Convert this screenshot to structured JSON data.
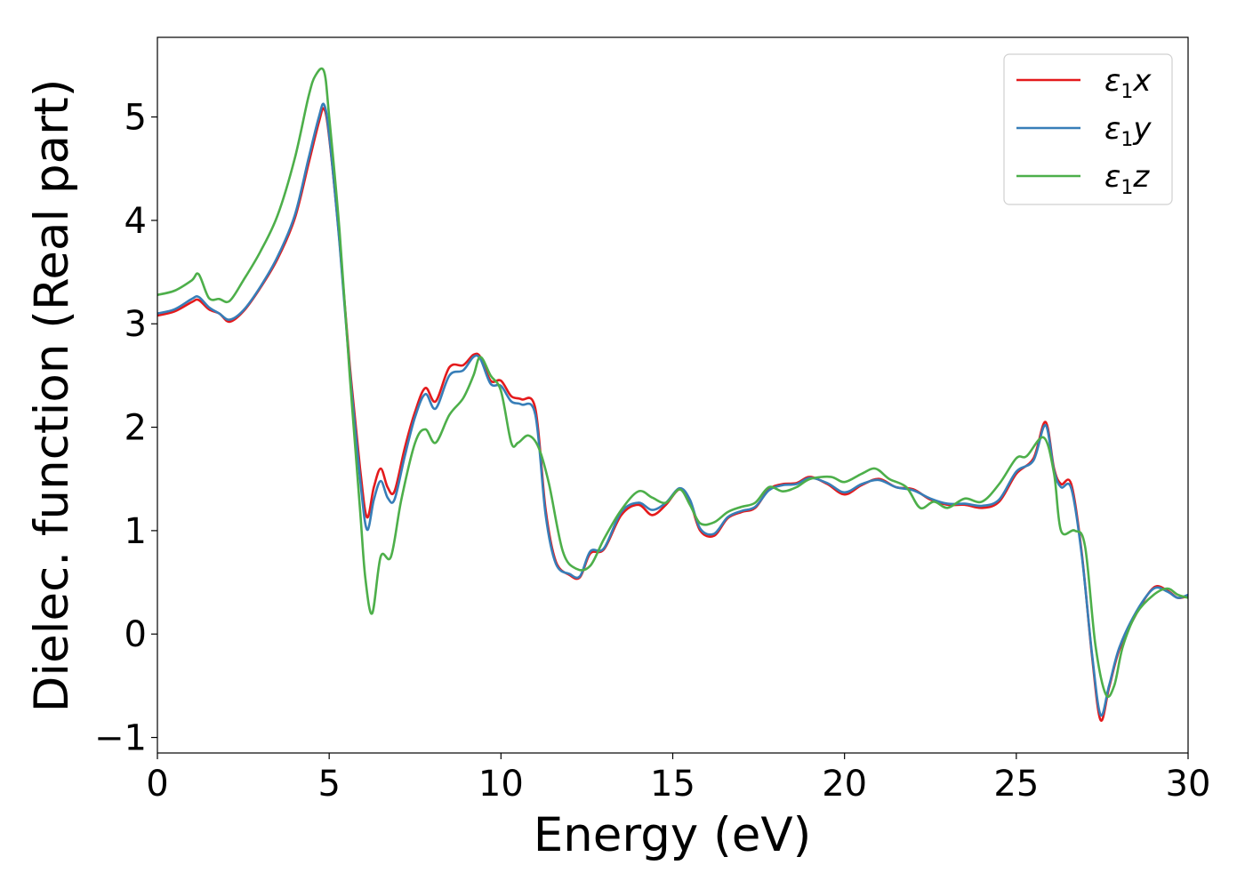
{
  "chart_data": {
    "type": "line",
    "title": "",
    "xlabel": "Energy (eV)",
    "ylabel": "Dielec. function (Real part)",
    "xlim": [
      0,
      30
    ],
    "ylim": [
      -1.15,
      5.77
    ],
    "xticks": [
      0,
      5,
      10,
      15,
      20,
      25,
      30
    ],
    "yticks": [
      -1,
      0,
      1,
      2,
      3,
      4,
      5
    ],
    "xtick_labels": [
      "0",
      "5",
      "10",
      "15",
      "20",
      "25",
      "30"
    ],
    "ytick_labels": [
      "−1",
      "0",
      "1",
      "2",
      "3",
      "4",
      "5"
    ],
    "grid": false,
    "legend_position": "upper right",
    "series": [
      {
        "name": "ε1x",
        "legend_base": "ε",
        "legend_sub": "1",
        "legend_suffix": "x",
        "color": "#e41a1c",
        "x": [
          0,
          0.5,
          1.0,
          1.2,
          1.5,
          1.8,
          2.1,
          2.5,
          3.0,
          3.5,
          4.0,
          4.4,
          4.7,
          4.85,
          5.0,
          5.3,
          5.6,
          5.9,
          6.1,
          6.3,
          6.5,
          6.7,
          6.9,
          7.2,
          7.5,
          7.8,
          8.1,
          8.5,
          8.9,
          9.2,
          9.4,
          9.7,
          10.0,
          10.3,
          10.6,
          11.0,
          11.3,
          11.6,
          12.0,
          12.3,
          12.6,
          13.0,
          13.5,
          14.0,
          14.4,
          14.8,
          15.2,
          15.5,
          15.8,
          16.2,
          16.6,
          17.0,
          17.4,
          17.8,
          18.2,
          18.6,
          19.0,
          19.5,
          20.0,
          20.5,
          21.0,
          21.5,
          22.0,
          22.5,
          23.0,
          23.5,
          24.0,
          24.5,
          25.0,
          25.5,
          25.85,
          26.1,
          26.3,
          26.6,
          26.9,
          27.2,
          27.45,
          27.7,
          28.0,
          28.5,
          29.0,
          29.4,
          29.7,
          30.0
        ],
        "y": [
          3.08,
          3.12,
          3.21,
          3.23,
          3.14,
          3.1,
          3.02,
          3.12,
          3.35,
          3.63,
          4.02,
          4.55,
          4.95,
          5.08,
          4.8,
          3.8,
          2.6,
          1.6,
          1.13,
          1.42,
          1.6,
          1.42,
          1.38,
          1.8,
          2.15,
          2.38,
          2.25,
          2.58,
          2.6,
          2.7,
          2.68,
          2.45,
          2.45,
          2.3,
          2.27,
          2.18,
          1.2,
          0.7,
          0.57,
          0.55,
          0.78,
          0.82,
          1.15,
          1.25,
          1.15,
          1.25,
          1.4,
          1.28,
          1.0,
          0.95,
          1.12,
          1.18,
          1.22,
          1.4,
          1.45,
          1.46,
          1.52,
          1.45,
          1.35,
          1.44,
          1.5,
          1.42,
          1.4,
          1.3,
          1.25,
          1.25,
          1.22,
          1.28,
          1.55,
          1.7,
          2.05,
          1.6,
          1.45,
          1.45,
          0.8,
          -0.2,
          -0.83,
          -0.52,
          -0.15,
          0.2,
          0.45,
          0.42,
          0.35,
          0.37
        ]
      },
      {
        "name": "ε1y",
        "legend_base": "ε",
        "legend_sub": "1",
        "legend_suffix": "y",
        "color": "#377eb8",
        "x": [
          0,
          0.5,
          1.0,
          1.2,
          1.5,
          1.8,
          2.1,
          2.5,
          3.0,
          3.5,
          4.0,
          4.4,
          4.7,
          4.85,
          5.0,
          5.3,
          5.6,
          5.9,
          6.1,
          6.3,
          6.5,
          6.7,
          6.9,
          7.2,
          7.5,
          7.8,
          8.1,
          8.5,
          8.9,
          9.2,
          9.4,
          9.7,
          10.0,
          10.3,
          10.6,
          11.0,
          11.3,
          11.6,
          12.0,
          12.3,
          12.6,
          13.0,
          13.5,
          14.0,
          14.4,
          14.8,
          15.2,
          15.5,
          15.8,
          16.2,
          16.6,
          17.0,
          17.4,
          17.8,
          18.2,
          18.6,
          19.0,
          19.5,
          20.0,
          20.5,
          21.0,
          21.5,
          22.0,
          22.5,
          23.0,
          23.5,
          24.0,
          24.5,
          25.0,
          25.5,
          25.85,
          26.1,
          26.3,
          26.6,
          26.9,
          27.2,
          27.45,
          27.7,
          28.0,
          28.5,
          29.0,
          29.4,
          29.7,
          30.0
        ],
        "y": [
          3.1,
          3.14,
          3.24,
          3.26,
          3.16,
          3.1,
          3.04,
          3.13,
          3.36,
          3.65,
          4.05,
          4.6,
          5.0,
          5.12,
          4.82,
          3.78,
          2.55,
          1.5,
          1.01,
          1.3,
          1.48,
          1.32,
          1.3,
          1.72,
          2.1,
          2.32,
          2.18,
          2.5,
          2.55,
          2.68,
          2.66,
          2.42,
          2.4,
          2.25,
          2.22,
          2.12,
          1.15,
          0.68,
          0.58,
          0.56,
          0.8,
          0.83,
          1.18,
          1.27,
          1.2,
          1.27,
          1.41,
          1.3,
          1.02,
          0.97,
          1.13,
          1.19,
          1.23,
          1.39,
          1.44,
          1.45,
          1.51,
          1.46,
          1.37,
          1.45,
          1.49,
          1.42,
          1.39,
          1.31,
          1.26,
          1.26,
          1.24,
          1.3,
          1.57,
          1.68,
          2.02,
          1.58,
          1.42,
          1.41,
          0.78,
          -0.18,
          -0.78,
          -0.5,
          -0.13,
          0.22,
          0.44,
          0.41,
          0.35,
          0.38
        ]
      },
      {
        "name": "ε1z",
        "legend_base": "ε",
        "legend_sub": "1",
        "legend_suffix": "z",
        "color": "#4daf4a",
        "x": [
          0,
          0.5,
          1.0,
          1.2,
          1.5,
          1.8,
          2.1,
          2.5,
          3.0,
          3.5,
          4.0,
          4.4,
          4.6,
          4.85,
          5.0,
          5.3,
          5.6,
          5.9,
          6.05,
          6.25,
          6.5,
          6.8,
          7.1,
          7.5,
          7.8,
          8.1,
          8.5,
          8.9,
          9.2,
          9.4,
          9.7,
          10.0,
          10.3,
          10.5,
          10.8,
          11.1,
          11.4,
          11.8,
          12.2,
          12.6,
          13.0,
          13.5,
          14.0,
          14.4,
          14.8,
          15.2,
          15.5,
          15.8,
          16.2,
          16.6,
          17.0,
          17.4,
          17.8,
          18.2,
          18.6,
          19.0,
          19.6,
          20.0,
          20.5,
          20.9,
          21.3,
          21.8,
          22.2,
          22.6,
          23.0,
          23.5,
          24.0,
          24.5,
          25.0,
          25.3,
          25.8,
          26.1,
          26.3,
          26.7,
          27.0,
          27.3,
          27.6,
          27.85,
          28.1,
          28.5,
          29.0,
          29.4,
          29.7,
          30.0
        ],
        "y": [
          3.28,
          3.32,
          3.42,
          3.48,
          3.25,
          3.24,
          3.22,
          3.42,
          3.7,
          4.05,
          4.6,
          5.2,
          5.4,
          5.44,
          5.0,
          3.9,
          2.5,
          1.2,
          0.55,
          0.2,
          0.75,
          0.75,
          1.3,
          1.85,
          1.98,
          1.85,
          2.12,
          2.28,
          2.5,
          2.68,
          2.5,
          2.35,
          1.85,
          1.85,
          1.92,
          1.8,
          1.45,
          0.8,
          0.63,
          0.66,
          0.92,
          1.2,
          1.38,
          1.32,
          1.27,
          1.4,
          1.25,
          1.07,
          1.08,
          1.18,
          1.23,
          1.27,
          1.42,
          1.38,
          1.42,
          1.5,
          1.52,
          1.47,
          1.55,
          1.6,
          1.5,
          1.42,
          1.22,
          1.28,
          1.22,
          1.31,
          1.28,
          1.45,
          1.7,
          1.72,
          1.9,
          1.55,
          1.0,
          1.0,
          0.85,
          -0.1,
          -0.58,
          -0.5,
          -0.12,
          0.2,
          0.38,
          0.44,
          0.38,
          0.35
        ]
      }
    ]
  }
}
